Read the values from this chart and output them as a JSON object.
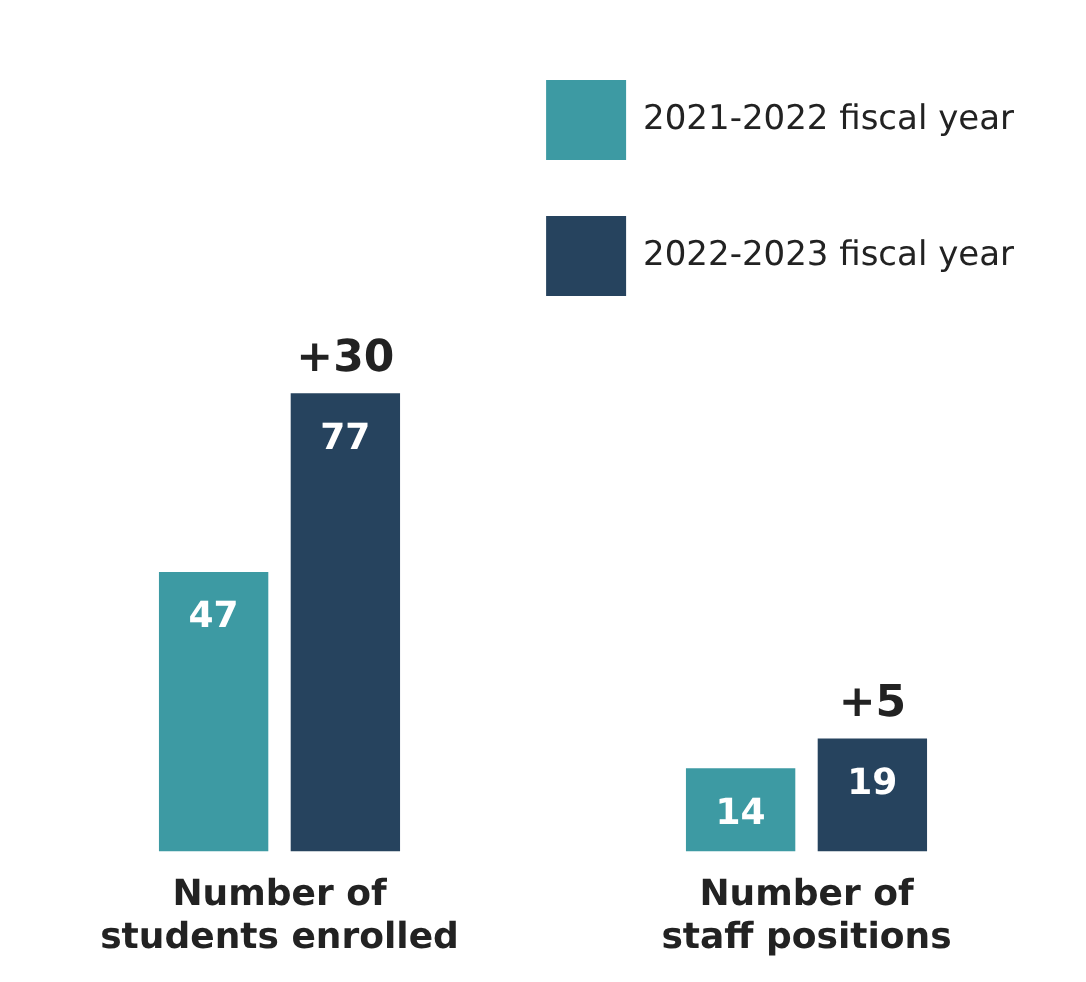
{
  "chart_data": {
    "type": "bar",
    "categories": [
      "Number of\nstudents enrolled",
      "Number of\nstaff positions"
    ],
    "series": [
      {
        "name": "2021-2022 fiscal year",
        "color": "#3d9aa3",
        "values": [
          47,
          14
        ]
      },
      {
        "name": "2022-2023 fiscal year",
        "color": "#26435e",
        "values": [
          77,
          19
        ]
      }
    ],
    "data_labels": true,
    "legend": "top right",
    "annotations": [
      "+30",
      "+5"
    ]
  }
}
